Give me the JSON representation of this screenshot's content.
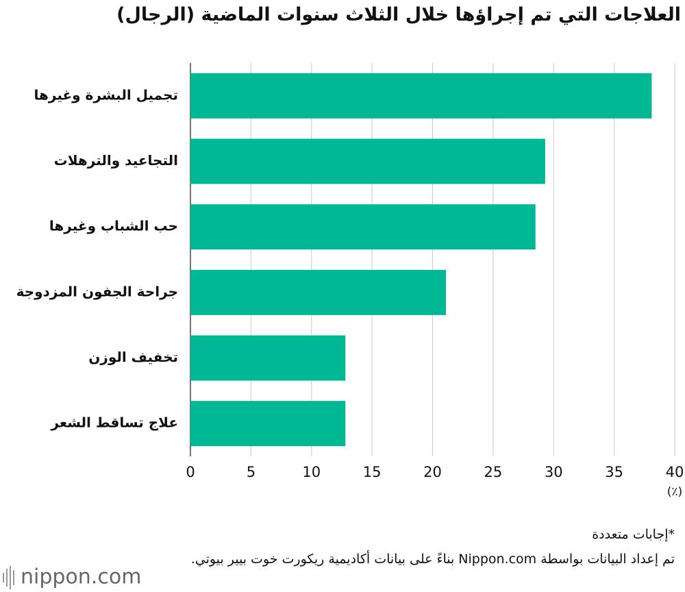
{
  "chart_data": {
    "type": "barh",
    "title": "العلاجات التي تم إجراؤها خلال الثلاث سنوات الماضية (الرجال)",
    "categories": [
      "تجميل البشرة وغيرها",
      "التجاعيد والترهلات",
      "حب الشباب وغيرها",
      "جراحة الجفون المزدوجة",
      "تخفيف الوزن",
      "علاج تساقط الشعر"
    ],
    "values": [
      38.1,
      29.3,
      28.5,
      21.1,
      12.8,
      12.8
    ],
    "color": "#00b994",
    "xlim": [
      0,
      40
    ],
    "xticks": [
      0,
      5,
      10,
      15,
      20,
      25,
      30,
      35,
      40
    ],
    "xlabel": "(٪)",
    "grid": true,
    "notes": [
      "*إجابات متعددة",
      "تم إعداد البيانات بواسطة Nippon.com بناءً على بيانات أكاديمية ريكورت خوت بيير بيوتي."
    ],
    "logo": "nippon.com"
  }
}
